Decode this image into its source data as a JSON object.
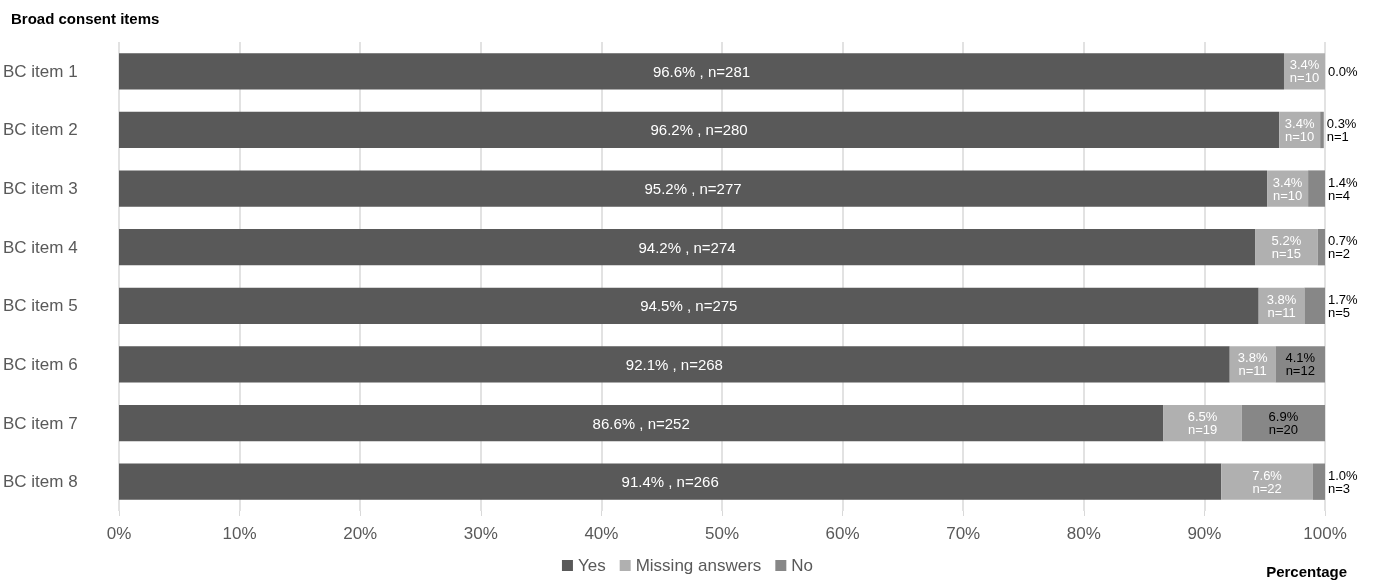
{
  "chart_data": {
    "type": "bar",
    "orientation": "horizontal",
    "stacked": true,
    "title": "Broad consent items",
    "xlabel": "Percentage",
    "categories": [
      "BC item 1",
      "BC item 2",
      "BC item 3",
      "BC item 4",
      "BC item 5",
      "BC item 6",
      "BC item 7",
      "BC item 8"
    ],
    "series": [
      {
        "name": "Yes",
        "color": "#595959",
        "values": [
          96.6,
          96.2,
          95.2,
          94.2,
          94.5,
          92.1,
          86.6,
          91.4
        ],
        "value_labels": [
          "96.6% , n=281",
          "96.2% , n=280",
          "95.2% , n=277",
          "94.2% , n=274",
          "94.5% , n=275",
          "92.1% , n=268",
          "86.6% , n=252",
          "91.4% , n=266"
        ]
      },
      {
        "name": "Missing answers",
        "color": "#b0b0b0",
        "values": [
          3.4,
          3.4,
          3.4,
          5.2,
          3.8,
          3.8,
          6.5,
          7.6
        ],
        "value_labels": [
          "3.4%\nn=10",
          "3.4%\nn=10",
          "3.4%\nn=10",
          "5.2%\nn=15",
          "3.8%\nn=11",
          "3.8%\nn=11",
          "6.5%\nn=19",
          "7.6%\nn=22"
        ]
      },
      {
        "name": "No",
        "color": "#878787",
        "values": [
          0.0,
          0.3,
          1.4,
          0.7,
          1.7,
          4.1,
          6.9,
          1.0
        ],
        "value_labels": [
          "0.0%",
          "0.3%\nn=1",
          "1.4%\nn=4",
          "0.7%\nn=2",
          "1.7%\nn=5",
          "4.1%\nn=12",
          "6.9%\nn=20",
          "1.0%\nn=3"
        ]
      }
    ],
    "xlim": [
      0,
      100
    ],
    "xticks": [
      {
        "value": 0,
        "label": "0%"
      },
      {
        "value": 10,
        "label": "10%"
      },
      {
        "value": 20,
        "label": "20%"
      },
      {
        "value": 30,
        "label": "30%"
      },
      {
        "value": 40,
        "label": "40%"
      },
      {
        "value": 50,
        "label": "50%"
      },
      {
        "value": 60,
        "label": "60%"
      },
      {
        "value": 70,
        "label": "70%"
      },
      {
        "value": 80,
        "label": "80%"
      },
      {
        "value": 90,
        "label": "90%"
      },
      {
        "value": 100,
        "label": "100%"
      }
    ],
    "grid": "x",
    "legend": "bottom"
  }
}
